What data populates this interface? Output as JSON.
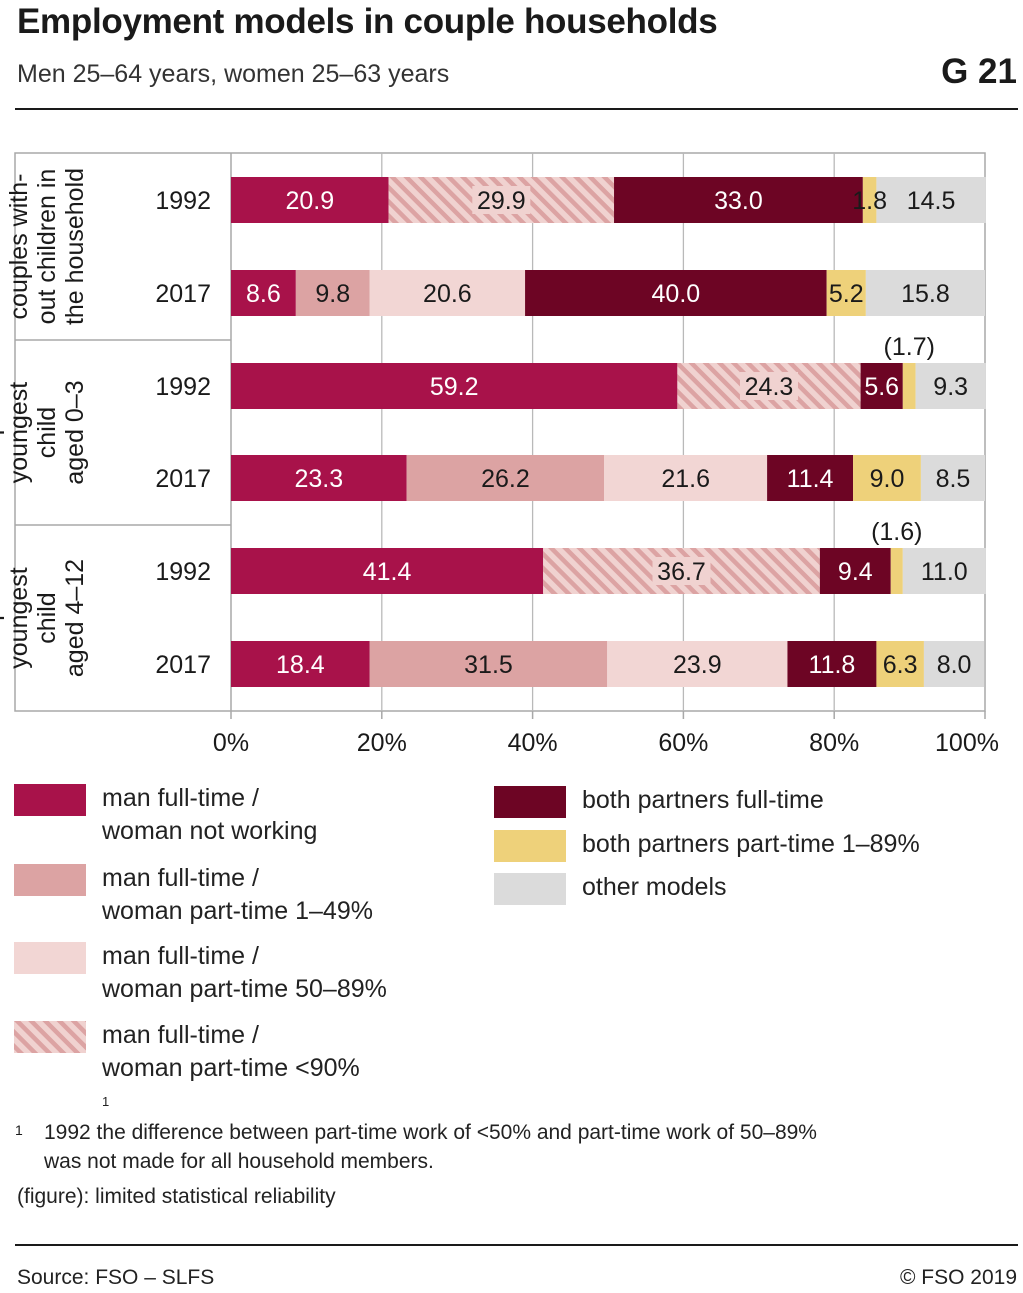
{
  "header": {
    "title": "Employment models in couple households",
    "subtitle": "Men 25–64 years, women 25–63 years",
    "chart_id": "G 21"
  },
  "chart_data": {
    "type": "bar",
    "orientation": "horizontal",
    "stacked": true,
    "xlim": [
      0,
      100
    ],
    "x_ticks": [
      "0%",
      "20%",
      "40%",
      "60%",
      "80%",
      "100%"
    ],
    "grid": true,
    "groups": [
      {
        "label_lines": [
          "couples with-",
          "out children in",
          "the household"
        ],
        "rows": [
          {
            "year": "1992",
            "values": [
              20.9,
              0,
              0,
              29.9,
              33.0,
              1.8,
              14.5
            ],
            "labels": [
              "20.9",
              "",
              "",
              "29.9",
              "33.0",
              "1.8",
              "14.5"
            ],
            "annotation": ""
          },
          {
            "year": "2017",
            "values": [
              8.6,
              9.8,
              20.6,
              0,
              40.0,
              5.2,
              15.8
            ],
            "labels": [
              "8.6",
              "9.8",
              "20.6",
              "",
              "40.0",
              "5.2",
              "15.8"
            ],
            "annotation": ""
          }
        ]
      },
      {
        "label_lines": [
          "couples",
          "youngest",
          "child",
          "aged 0–3"
        ],
        "rows": [
          {
            "year": "1992",
            "values": [
              59.2,
              0,
              0,
              24.3,
              5.6,
              1.7,
              9.3
            ],
            "labels": [
              "59.2",
              "",
              "",
              "24.3",
              "5.6",
              "",
              "9.3"
            ],
            "annotation": "(1.7)"
          },
          {
            "year": "2017",
            "values": [
              23.3,
              26.2,
              21.6,
              0,
              11.4,
              9.0,
              8.5
            ],
            "labels": [
              "23.3",
              "26.2",
              "21.6",
              "",
              "11.4",
              "9.0",
              "8.5"
            ],
            "annotation": ""
          }
        ]
      },
      {
        "label_lines": [
          "couples",
          "youngest",
          "child",
          "aged 4–12"
        ],
        "rows": [
          {
            "year": "1992",
            "values": [
              41.4,
              0,
              0,
              36.7,
              9.4,
              1.6,
              11.0
            ],
            "labels": [
              "41.4",
              "",
              "",
              "36.7",
              "9.4",
              "",
              "11.0"
            ],
            "annotation": "(1.6)"
          },
          {
            "year": "2017",
            "values": [
              18.4,
              31.5,
              23.9,
              0,
              11.8,
              6.3,
              8.0
            ],
            "labels": [
              "18.4",
              "31.5",
              "23.9",
              "",
              "11.8",
              "6.3",
              "8.0"
            ],
            "annotation": ""
          }
        ]
      }
    ],
    "series": [
      {
        "name": "man full-time / woman not working",
        "color": "#a8124a",
        "label_color": "#ffffff",
        "pattern": "solid"
      },
      {
        "name": "man full-time / woman part-time 1–49%",
        "color": "#dca3a3",
        "label_color": "#1a1a1a",
        "pattern": "solid"
      },
      {
        "name": "man full-time / woman part-time 50–89%",
        "color": "#f2d6d4",
        "label_color": "#1a1a1a",
        "pattern": "solid"
      },
      {
        "name": "man full-time / woman part-time <90%¹",
        "color": "#dca3a3",
        "label_color": "#1a1a1a",
        "pattern": "hatched"
      },
      {
        "name": "both partners full-time",
        "color": "#6d0524",
        "label_color": "#ffffff",
        "pattern": "solid"
      },
      {
        "name": "both partners part-time 1–89%",
        "color": "#eed17a",
        "label_color": "#1a1a1a",
        "pattern": "solid"
      },
      {
        "name": "other models",
        "color": "#dbdbdb",
        "label_color": "#1a1a1a",
        "pattern": "solid"
      }
    ]
  },
  "legend": {
    "left": [
      {
        "line1": "man full-time /",
        "line2": "woman not working"
      },
      {
        "line1": "man full-time /",
        "line2": "woman part-time 1–49%"
      },
      {
        "line1": "man full-time /",
        "line2": "woman part-time 50–89%"
      },
      {
        "line1": "man full-time /",
        "line2": "woman part-time <90%",
        "sup": "1"
      }
    ],
    "right": [
      {
        "line1": "both partners full-time"
      },
      {
        "line1": "both partners part-time 1–89%"
      },
      {
        "line1": "other models"
      }
    ]
  },
  "footnotes": {
    "mark": "1",
    "note_line1": "1992 the difference between part-time work of <50% and part-time work of 50–89%",
    "note_line2": "was not made for all household members.",
    "reliability": "(figure): limited statistical reliability"
  },
  "footer": {
    "source": "Source: FSO – SLFS",
    "copyright": "© FSO 2019"
  }
}
